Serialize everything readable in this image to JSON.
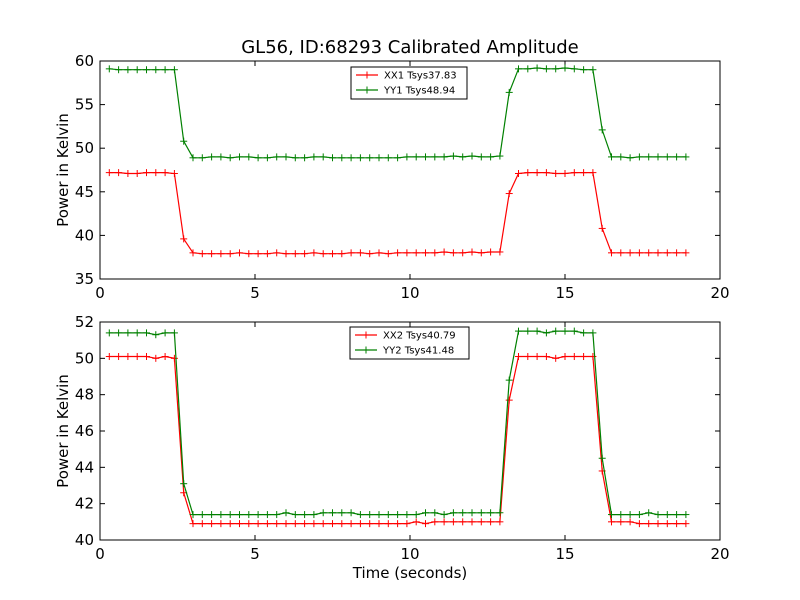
{
  "title": "GL56, ID:68293 Calibrated Amplitude",
  "colors": {
    "red": "#ff0000",
    "green": "#008000"
  },
  "chart_data": [
    {
      "type": "line",
      "ylabel": "Power in Kelvin",
      "xlabel": "",
      "xlim": [
        0,
        20
      ],
      "ylim": [
        35,
        60
      ],
      "xticks": [
        0,
        5,
        10,
        15,
        20
      ],
      "yticks": [
        35,
        40,
        45,
        50,
        55,
        60
      ],
      "legend": "top-center",
      "grid": false,
      "x": [
        0.3,
        0.6,
        0.9,
        1.2,
        1.5,
        1.8,
        2.1,
        2.4,
        2.7,
        3.0,
        3.3,
        3.6,
        3.9,
        4.2,
        4.5,
        4.8,
        5.1,
        5.4,
        5.7,
        6.0,
        6.3,
        6.6,
        6.9,
        7.2,
        7.5,
        7.8,
        8.1,
        8.4,
        8.7,
        9.0,
        9.3,
        9.6,
        9.9,
        10.2,
        10.5,
        10.8,
        11.1,
        11.4,
        11.7,
        12.0,
        12.3,
        12.6,
        12.9,
        13.2,
        13.5,
        13.8,
        14.1,
        14.4,
        14.7,
        15.0,
        15.3,
        15.6,
        15.9,
        16.2,
        16.5,
        16.8,
        17.1,
        17.4,
        17.7,
        18.0,
        18.3,
        18.6,
        18.9
      ],
      "series": [
        {
          "name": "XX1 Tsys37.83",
          "color": "#ff0000",
          "values": [
            47.2,
            47.2,
            47.1,
            47.1,
            47.2,
            47.2,
            47.2,
            47.1,
            39.6,
            38.0,
            37.9,
            37.9,
            37.9,
            37.9,
            38.0,
            37.9,
            37.9,
            37.9,
            38.0,
            37.9,
            37.9,
            37.9,
            38.0,
            37.9,
            37.9,
            37.9,
            38.0,
            38.0,
            37.9,
            38.0,
            37.9,
            38.0,
            38.0,
            38.0,
            38.0,
            38.0,
            38.1,
            38.0,
            38.0,
            38.1,
            38.0,
            38.1,
            38.1,
            44.8,
            47.1,
            47.2,
            47.2,
            47.2,
            47.1,
            47.1,
            47.2,
            47.2,
            47.2,
            40.8,
            38.0,
            38.0,
            38.0,
            38.0,
            38.0,
            38.0,
            38.0,
            38.0,
            38.0
          ]
        },
        {
          "name": "YY1 Tsys48.94",
          "color": "#008000",
          "values": [
            59.1,
            59.0,
            59.0,
            59.0,
            59.0,
            59.0,
            59.0,
            59.0,
            50.8,
            48.9,
            48.9,
            49.0,
            49.0,
            48.9,
            49.0,
            49.0,
            48.9,
            48.9,
            49.0,
            49.0,
            48.9,
            48.9,
            49.0,
            49.0,
            48.9,
            48.9,
            48.9,
            48.9,
            48.9,
            48.9,
            48.9,
            48.9,
            49.0,
            49.0,
            49.0,
            49.0,
            49.0,
            49.1,
            49.0,
            49.1,
            49.0,
            49.0,
            49.1,
            56.4,
            59.1,
            59.1,
            59.2,
            59.1,
            59.1,
            59.2,
            59.1,
            59.0,
            59.0,
            52.1,
            49.0,
            49.0,
            48.9,
            49.0,
            49.0,
            49.0,
            49.0,
            49.0,
            49.0
          ]
        }
      ]
    },
    {
      "type": "line",
      "ylabel": "Power in Kelvin",
      "xlabel": "Time (seconds)",
      "xlim": [
        0,
        20
      ],
      "ylim": [
        40,
        52
      ],
      "xticks": [
        0,
        5,
        10,
        15,
        20
      ],
      "yticks": [
        40,
        42,
        44,
        46,
        48,
        50,
        52
      ],
      "legend": "top-center",
      "grid": false,
      "x": [
        0.3,
        0.6,
        0.9,
        1.2,
        1.5,
        1.8,
        2.1,
        2.4,
        2.7,
        3.0,
        3.3,
        3.6,
        3.9,
        4.2,
        4.5,
        4.8,
        5.1,
        5.4,
        5.7,
        6.0,
        6.3,
        6.6,
        6.9,
        7.2,
        7.5,
        7.8,
        8.1,
        8.4,
        8.7,
        9.0,
        9.3,
        9.6,
        9.9,
        10.2,
        10.5,
        10.8,
        11.1,
        11.4,
        11.7,
        12.0,
        12.3,
        12.6,
        12.9,
        13.2,
        13.5,
        13.8,
        14.1,
        14.4,
        14.7,
        15.0,
        15.3,
        15.6,
        15.9,
        16.2,
        16.5,
        16.8,
        17.1,
        17.4,
        17.7,
        18.0,
        18.3,
        18.6,
        18.9
      ],
      "series": [
        {
          "name": "XX2 Tsys40.79",
          "color": "#ff0000",
          "values": [
            50.1,
            50.1,
            50.1,
            50.1,
            50.1,
            50.0,
            50.1,
            50.0,
            42.6,
            40.9,
            40.9,
            40.9,
            40.9,
            40.9,
            40.9,
            40.9,
            40.9,
            40.9,
            40.9,
            40.9,
            40.9,
            40.9,
            40.9,
            40.9,
            40.9,
            40.9,
            40.9,
            40.9,
            40.9,
            40.9,
            40.9,
            40.9,
            40.9,
            41.0,
            40.9,
            41.0,
            41.0,
            41.0,
            41.0,
            41.0,
            41.0,
            41.0,
            41.0,
            47.7,
            50.1,
            50.1,
            50.1,
            50.1,
            50.0,
            50.1,
            50.1,
            50.1,
            50.1,
            43.8,
            41.0,
            41.0,
            41.0,
            40.9,
            40.9,
            40.9,
            40.9,
            40.9,
            40.9
          ]
        },
        {
          "name": "YY2 Tsys41.48",
          "color": "#008000",
          "values": [
            51.4,
            51.4,
            51.4,
            51.4,
            51.4,
            51.3,
            51.4,
            51.4,
            43.1,
            41.4,
            41.4,
            41.4,
            41.4,
            41.4,
            41.4,
            41.4,
            41.4,
            41.4,
            41.4,
            41.5,
            41.4,
            41.4,
            41.4,
            41.5,
            41.5,
            41.5,
            41.5,
            41.4,
            41.4,
            41.4,
            41.4,
            41.4,
            41.4,
            41.4,
            41.5,
            41.5,
            41.4,
            41.5,
            41.5,
            41.5,
            41.5,
            41.5,
            41.5,
            48.8,
            51.5,
            51.5,
            51.5,
            51.4,
            51.5,
            51.5,
            51.5,
            51.4,
            51.4,
            44.5,
            41.4,
            41.4,
            41.4,
            41.4,
            41.5,
            41.4,
            41.4,
            41.4,
            41.4
          ]
        }
      ]
    }
  ]
}
